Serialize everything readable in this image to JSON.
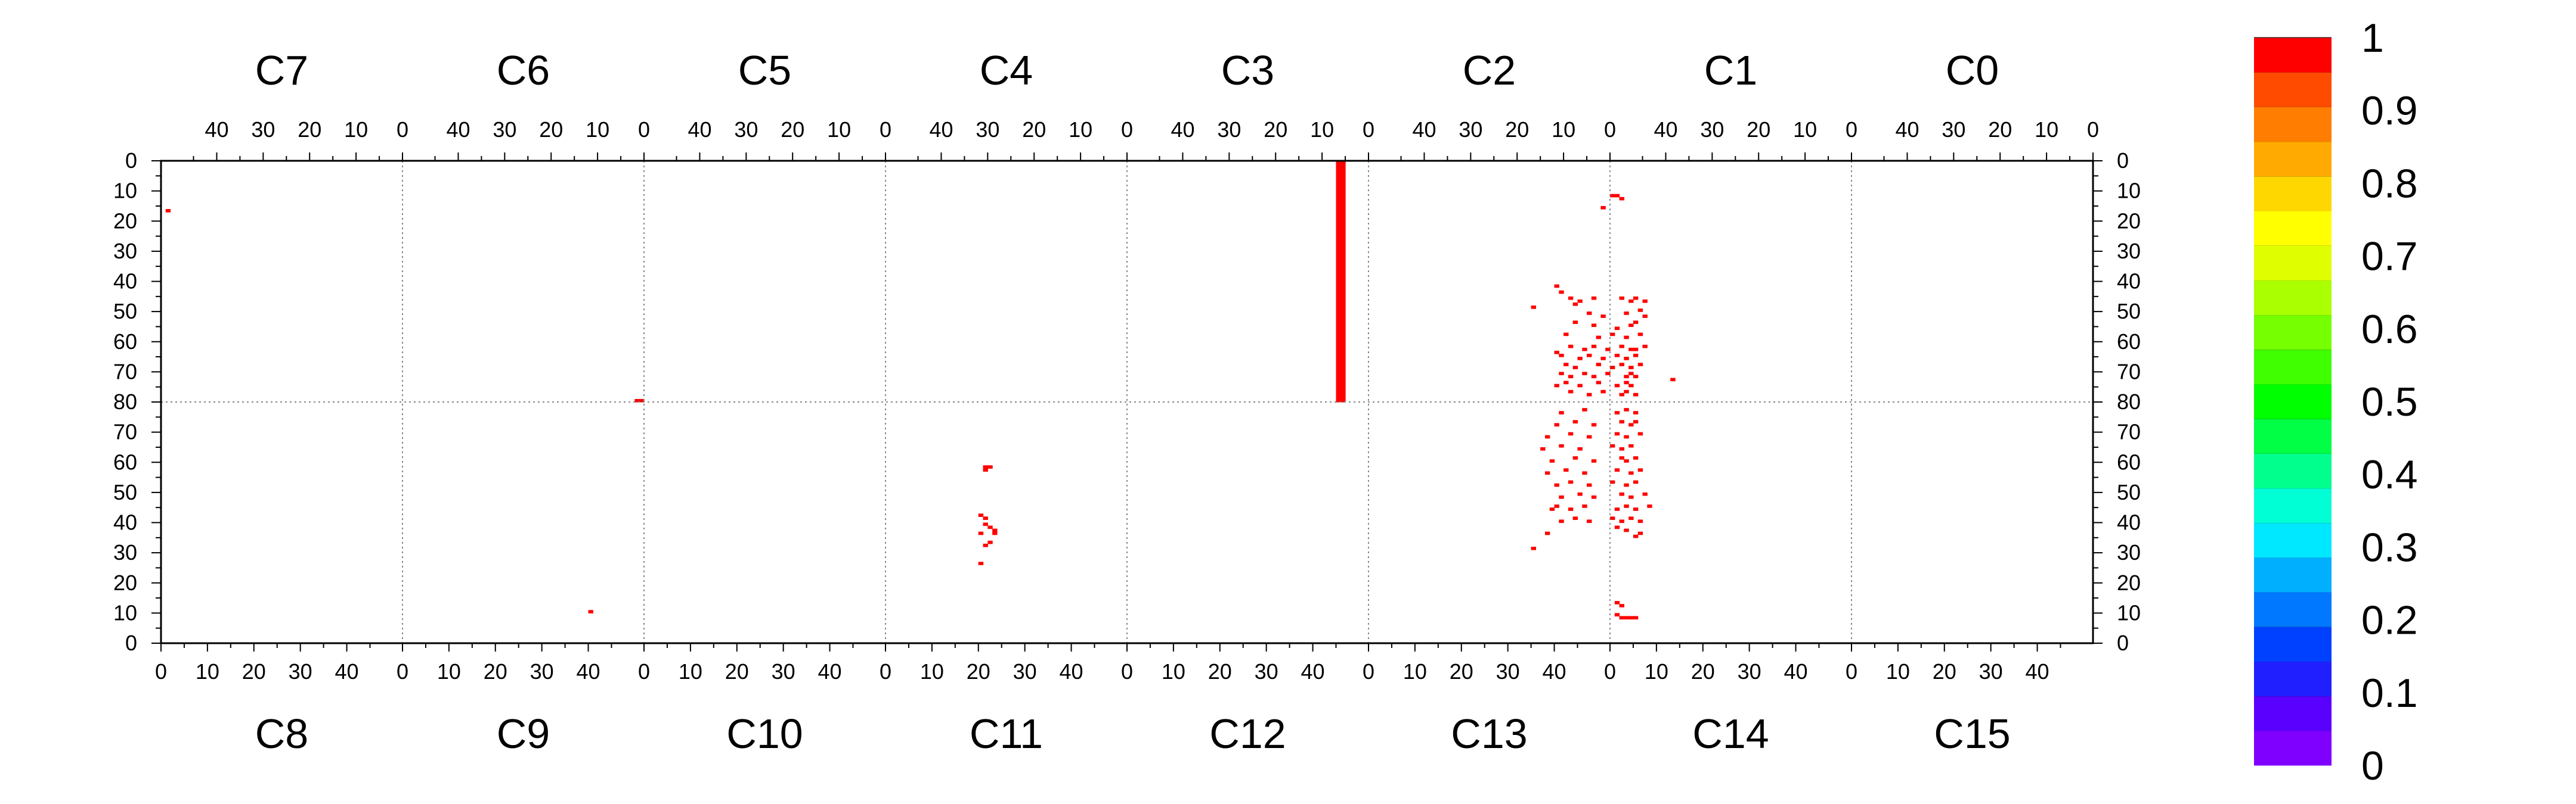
{
  "chart_data": {
    "type": "heatmap",
    "title": "",
    "xlabel": "",
    "ylabel": "",
    "top_chips": [
      "C7",
      "C6",
      "C5",
      "C4",
      "C3",
      "C2",
      "C1",
      "C0"
    ],
    "bottom_chips": [
      "C8",
      "C9",
      "C10",
      "C11",
      "C12",
      "C13",
      "C14",
      "C15"
    ],
    "top_x_tick_labels": [
      "40",
      "30",
      "20",
      "10",
      "0"
    ],
    "bottom_x_tick_labels": [
      "0",
      "10",
      "20",
      "30",
      "40"
    ],
    "columns_per_chip": 52,
    "rows_per_half": 80,
    "y_tick_labels_top_half": [
      "0",
      "10",
      "20",
      "30",
      "40",
      "50",
      "60",
      "70",
      "80"
    ],
    "y_tick_labels_bottom_half": [
      "70",
      "60",
      "50",
      "40",
      "30",
      "20",
      "10",
      "0"
    ],
    "colorbar": {
      "min": 0,
      "max": 1,
      "tick_labels": [
        "0",
        "0.1",
        "0.2",
        "0.3",
        "0.4",
        "0.5",
        "0.6",
        "0.7",
        "0.8",
        "0.9",
        "1"
      ],
      "colors": [
        "#7f00ff",
        "#5a00ff",
        "#1f1fff",
        "#0040ff",
        "#0078ff",
        "#00b0ff",
        "#00e8ff",
        "#00ffd5",
        "#00ff8c",
        "#00ff45",
        "#00ff00",
        "#40ff00",
        "#75ff00",
        "#aaff00",
        "#dfff00",
        "#ffff00",
        "#ffd700",
        "#ffaa00",
        "#ff7d00",
        "#ff4b00",
        "#ff0000"
      ]
    },
    "grid": "dotted chip boundaries and half separator",
    "hit_value": 1,
    "hit_color": "#ff0000",
    "hits": [
      {
        "chip": "C7",
        "half": "top",
        "col": 50,
        "row": 16
      },
      {
        "chip": "C6",
        "half": "top",
        "col": 0,
        "row": 79
      },
      {
        "chip": "C6",
        "half": "top",
        "col": 1,
        "row": 79
      },
      {
        "chip": "C3",
        "half": "top",
        "col": 5,
        "row": 0,
        "height": 80
      },
      {
        "chip": "C3",
        "half": "top",
        "col": 6,
        "row": 0,
        "height": 80
      },
      {
        "chip": "C2",
        "half": "top",
        "col": 1,
        "row": 15
      },
      {
        "chip": "C1",
        "half": "top",
        "col": 50,
        "row": 11
      },
      {
        "chip": "C1",
        "half": "top",
        "col": 51,
        "row": 11
      },
      {
        "chip": "C1",
        "half": "top",
        "col": 49,
        "row": 12
      },
      {
        "chip": "C2",
        "half": "top",
        "col": 16,
        "row": 48
      },
      {
        "chip": "C2",
        "half": "top",
        "col": 11,
        "row": 41
      },
      {
        "chip": "C2",
        "half": "top",
        "col": 10,
        "row": 43
      },
      {
        "chip": "C2",
        "half": "top",
        "col": 8,
        "row": 45
      },
      {
        "chip": "C2",
        "half": "top",
        "col": 7,
        "row": 47
      },
      {
        "chip": "C2",
        "half": "top",
        "col": 6,
        "row": 46
      },
      {
        "chip": "C2",
        "half": "top",
        "col": 3,
        "row": 45
      },
      {
        "chip": "C1",
        "half": "top",
        "col": 49,
        "row": 45
      },
      {
        "chip": "C1",
        "half": "top",
        "col": 47,
        "row": 46
      },
      {
        "chip": "C1",
        "half": "top",
        "col": 46,
        "row": 45
      },
      {
        "chip": "C1",
        "half": "top",
        "col": 44,
        "row": 46
      },
      {
        "chip": "C2",
        "half": "top",
        "col": 4,
        "row": 50
      },
      {
        "chip": "C2",
        "half": "top",
        "col": 1,
        "row": 51
      },
      {
        "chip": "C1",
        "half": "top",
        "col": 48,
        "row": 50
      },
      {
        "chip": "C1",
        "half": "top",
        "col": 45,
        "row": 49
      },
      {
        "chip": "C1",
        "half": "top",
        "col": 44,
        "row": 51
      },
      {
        "chip": "C2",
        "half": "top",
        "col": 7,
        "row": 53
      },
      {
        "chip": "C2",
        "half": "top",
        "col": 3,
        "row": 54
      },
      {
        "chip": "C1",
        "half": "top",
        "col": 50,
        "row": 55
      },
      {
        "chip": "C1",
        "half": "top",
        "col": 47,
        "row": 54
      },
      {
        "chip": "C1",
        "half": "top",
        "col": 46,
        "row": 53
      },
      {
        "chip": "C2",
        "half": "top",
        "col": 9,
        "row": 57
      },
      {
        "chip": "C2",
        "half": "top",
        "col": 2,
        "row": 58
      },
      {
        "chip": "C1",
        "half": "top",
        "col": 51,
        "row": 57
      },
      {
        "chip": "C1",
        "half": "top",
        "col": 48,
        "row": 58
      },
      {
        "chip": "C1",
        "half": "top",
        "col": 45,
        "row": 57
      },
      {
        "chip": "C2",
        "half": "top",
        "col": 8,
        "row": 61
      },
      {
        "chip": "C2",
        "half": "top",
        "col": 5,
        "row": 62
      },
      {
        "chip": "C2",
        "half": "top",
        "col": 3,
        "row": 61
      },
      {
        "chip": "C2",
        "half": "top",
        "col": 0,
        "row": 62
      },
      {
        "chip": "C1",
        "half": "top",
        "col": 49,
        "row": 61
      },
      {
        "chip": "C1",
        "half": "top",
        "col": 47,
        "row": 62
      },
      {
        "chip": "C1",
        "half": "top",
        "col": 46,
        "row": 62
      },
      {
        "chip": "C1",
        "half": "top",
        "col": 44,
        "row": 61
      },
      {
        "chip": "C2",
        "half": "top",
        "col": 11,
        "row": 63
      },
      {
        "chip": "C2",
        "half": "top",
        "col": 10,
        "row": 64
      },
      {
        "chip": "C2",
        "half": "top",
        "col": 6,
        "row": 65
      },
      {
        "chip": "C2",
        "half": "top",
        "col": 4,
        "row": 64
      },
      {
        "chip": "C2",
        "half": "top",
        "col": 1,
        "row": 65
      },
      {
        "chip": "C1",
        "half": "top",
        "col": 50,
        "row": 64
      },
      {
        "chip": "C1",
        "half": "top",
        "col": 48,
        "row": 65
      },
      {
        "chip": "C1",
        "half": "top",
        "col": 46,
        "row": 64
      },
      {
        "chip": "C2",
        "half": "top",
        "col": 9,
        "row": 67
      },
      {
        "chip": "C2",
        "half": "top",
        "col": 7,
        "row": 68
      },
      {
        "chip": "C2",
        "half": "top",
        "col": 2,
        "row": 67
      },
      {
        "chip": "C1",
        "half": "top",
        "col": 51,
        "row": 68
      },
      {
        "chip": "C1",
        "half": "top",
        "col": 49,
        "row": 67
      },
      {
        "chip": "C1",
        "half": "top",
        "col": 47,
        "row": 68
      },
      {
        "chip": "C1",
        "half": "top",
        "col": 45,
        "row": 67
      },
      {
        "chip": "C2",
        "half": "top",
        "col": 10,
        "row": 70
      },
      {
        "chip": "C2",
        "half": "top",
        "col": 8,
        "row": 71
      },
      {
        "chip": "C2",
        "half": "top",
        "col": 5,
        "row": 70
      },
      {
        "chip": "C2",
        "half": "top",
        "col": 3,
        "row": 71
      },
      {
        "chip": "C2",
        "half": "top",
        "col": 0,
        "row": 70
      },
      {
        "chip": "C1",
        "half": "top",
        "col": 48,
        "row": 71
      },
      {
        "chip": "C1",
        "half": "top",
        "col": 47,
        "row": 70
      },
      {
        "chip": "C1",
        "half": "top",
        "col": 46,
        "row": 71
      },
      {
        "chip": "C1",
        "half": "top",
        "col": 38,
        "row": 72
      },
      {
        "chip": "C2",
        "half": "top",
        "col": 11,
        "row": 74
      },
      {
        "chip": "C2",
        "half": "top",
        "col": 9,
        "row": 73
      },
      {
        "chip": "C2",
        "half": "top",
        "col": 6,
        "row": 74
      },
      {
        "chip": "C2",
        "half": "top",
        "col": 2,
        "row": 73
      },
      {
        "chip": "C1",
        "half": "top",
        "col": 50,
        "row": 74
      },
      {
        "chip": "C1",
        "half": "top",
        "col": 48,
        "row": 73
      },
      {
        "chip": "C1",
        "half": "top",
        "col": 47,
        "row": 74
      },
      {
        "chip": "C2",
        "half": "top",
        "col": 8,
        "row": 76
      },
      {
        "chip": "C2",
        "half": "top",
        "col": 4,
        "row": 77
      },
      {
        "chip": "C2",
        "half": "top",
        "col": 1,
        "row": 76
      },
      {
        "chip": "C1",
        "half": "top",
        "col": 49,
        "row": 77
      },
      {
        "chip": "C1",
        "half": "top",
        "col": 48,
        "row": 76
      },
      {
        "chip": "C1",
        "half": "top",
        "col": 46,
        "row": 77
      },
      {
        "chip": "C9",
        "half": "bottom",
        "col": 40,
        "row": 10
      },
      {
        "chip": "C11",
        "half": "bottom",
        "col": 21,
        "row": 57
      },
      {
        "chip": "C11",
        "half": "bottom",
        "col": 21,
        "row": 58
      },
      {
        "chip": "C11",
        "half": "bottom",
        "col": 22,
        "row": 58
      },
      {
        "chip": "C11",
        "half": "bottom",
        "col": 20,
        "row": 42
      },
      {
        "chip": "C11",
        "half": "bottom",
        "col": 21,
        "row": 41
      },
      {
        "chip": "C11",
        "half": "bottom",
        "col": 21,
        "row": 39
      },
      {
        "chip": "C11",
        "half": "bottom",
        "col": 22,
        "row": 38
      },
      {
        "chip": "C11",
        "half": "bottom",
        "col": 23,
        "row": 37
      },
      {
        "chip": "C11",
        "half": "bottom",
        "col": 23,
        "row": 36
      },
      {
        "chip": "C11",
        "half": "bottom",
        "col": 20,
        "row": 36
      },
      {
        "chip": "C11",
        "half": "bottom",
        "col": 22,
        "row": 33
      },
      {
        "chip": "C11",
        "half": "bottom",
        "col": 21,
        "row": 32
      },
      {
        "chip": "C11",
        "half": "bottom",
        "col": 20,
        "row": 26
      },
      {
        "chip": "C13",
        "half": "bottom",
        "col": 38,
        "row": 36
      },
      {
        "chip": "C13",
        "half": "bottom",
        "col": 35,
        "row": 31
      },
      {
        "chip": "C14",
        "half": "bottom",
        "col": 1,
        "row": 13
      },
      {
        "chip": "C14",
        "half": "bottom",
        "col": 2,
        "row": 12
      },
      {
        "chip": "C14",
        "half": "bottom",
        "col": 2,
        "row": 8
      },
      {
        "chip": "C14",
        "half": "bottom",
        "col": 3,
        "row": 8
      },
      {
        "chip": "C14",
        "half": "bottom",
        "col": 4,
        "row": 8
      },
      {
        "chip": "C14",
        "half": "bottom",
        "col": 5,
        "row": 8
      },
      {
        "chip": "C14",
        "half": "bottom",
        "col": 1,
        "row": 9
      },
      {
        "chip": "C14",
        "half": "bottom",
        "col": 6,
        "row": 36
      },
      {
        "chip": "C14",
        "half": "bottom",
        "col": 5,
        "row": 35
      },
      {
        "chip": "C14",
        "half": "bottom",
        "col": 3,
        "row": 37
      },
      {
        "chip": "C14",
        "half": "bottom",
        "col": 1,
        "row": 38
      },
      {
        "chip": "C13",
        "half": "bottom",
        "col": 41,
        "row": 40
      },
      {
        "chip": "C13",
        "half": "bottom",
        "col": 44,
        "row": 41
      },
      {
        "chip": "C13",
        "half": "bottom",
        "col": 47,
        "row": 40
      },
      {
        "chip": "C14",
        "half": "bottom",
        "col": 0,
        "row": 41
      },
      {
        "chip": "C14",
        "half": "bottom",
        "col": 2,
        "row": 40
      },
      {
        "chip": "C14",
        "half": "bottom",
        "col": 4,
        "row": 41
      },
      {
        "chip": "C14",
        "half": "bottom",
        "col": 6,
        "row": 40
      },
      {
        "chip": "C13",
        "half": "bottom",
        "col": 39,
        "row": 44
      },
      {
        "chip": "C13",
        "half": "bottom",
        "col": 40,
        "row": 45
      },
      {
        "chip": "C13",
        "half": "bottom",
        "col": 43,
        "row": 44
      },
      {
        "chip": "C13",
        "half": "bottom",
        "col": 46,
        "row": 45
      },
      {
        "chip": "C14",
        "half": "bottom",
        "col": 1,
        "row": 44
      },
      {
        "chip": "C14",
        "half": "bottom",
        "col": 3,
        "row": 45
      },
      {
        "chip": "C14",
        "half": "bottom",
        "col": 5,
        "row": 44
      },
      {
        "chip": "C14",
        "half": "bottom",
        "col": 8,
        "row": 45
      },
      {
        "chip": "C13",
        "half": "bottom",
        "col": 41,
        "row": 48
      },
      {
        "chip": "C13",
        "half": "bottom",
        "col": 45,
        "row": 49
      },
      {
        "chip": "C13",
        "half": "bottom",
        "col": 48,
        "row": 48
      },
      {
        "chip": "C14",
        "half": "bottom",
        "col": 2,
        "row": 49
      },
      {
        "chip": "C14",
        "half": "bottom",
        "col": 4,
        "row": 48
      },
      {
        "chip": "C14",
        "half": "bottom",
        "col": 7,
        "row": 49
      },
      {
        "chip": "C13",
        "half": "bottom",
        "col": 40,
        "row": 52
      },
      {
        "chip": "C13",
        "half": "bottom",
        "col": 43,
        "row": 53
      },
      {
        "chip": "C13",
        "half": "bottom",
        "col": 47,
        "row": 52
      },
      {
        "chip": "C14",
        "half": "bottom",
        "col": 0,
        "row": 53
      },
      {
        "chip": "C14",
        "half": "bottom",
        "col": 3,
        "row": 52
      },
      {
        "chip": "C14",
        "half": "bottom",
        "col": 5,
        "row": 53
      },
      {
        "chip": "C13",
        "half": "bottom",
        "col": 38,
        "row": 56
      },
      {
        "chip": "C13",
        "half": "bottom",
        "col": 42,
        "row": 57
      },
      {
        "chip": "C13",
        "half": "bottom",
        "col": 46,
        "row": 56
      },
      {
        "chip": "C14",
        "half": "bottom",
        "col": 1,
        "row": 57
      },
      {
        "chip": "C14",
        "half": "bottom",
        "col": 4,
        "row": 56
      },
      {
        "chip": "C14",
        "half": "bottom",
        "col": 6,
        "row": 57
      },
      {
        "chip": "C13",
        "half": "bottom",
        "col": 39,
        "row": 60
      },
      {
        "chip": "C13",
        "half": "bottom",
        "col": 44,
        "row": 61
      },
      {
        "chip": "C13",
        "half": "bottom",
        "col": 48,
        "row": 60
      },
      {
        "chip": "C14",
        "half": "bottom",
        "col": 2,
        "row": 61
      },
      {
        "chip": "C14",
        "half": "bottom",
        "col": 3,
        "row": 60
      },
      {
        "chip": "C14",
        "half": "bottom",
        "col": 5,
        "row": 61
      },
      {
        "chip": "C13",
        "half": "bottom",
        "col": 37,
        "row": 64
      },
      {
        "chip": "C13",
        "half": "bottom",
        "col": 41,
        "row": 65
      },
      {
        "chip": "C13",
        "half": "bottom",
        "col": 45,
        "row": 64
      },
      {
        "chip": "C14",
        "half": "bottom",
        "col": 0,
        "row": 65
      },
      {
        "chip": "C14",
        "half": "bottom",
        "col": 2,
        "row": 64
      },
      {
        "chip": "C14",
        "half": "bottom",
        "col": 4,
        "row": 65
      },
      {
        "chip": "C13",
        "half": "bottom",
        "col": 38,
        "row": 68
      },
      {
        "chip": "C13",
        "half": "bottom",
        "col": 43,
        "row": 69
      },
      {
        "chip": "C13",
        "half": "bottom",
        "col": 47,
        "row": 68
      },
      {
        "chip": "C14",
        "half": "bottom",
        "col": 1,
        "row": 69
      },
      {
        "chip": "C14",
        "half": "bottom",
        "col": 3,
        "row": 68
      },
      {
        "chip": "C14",
        "half": "bottom",
        "col": 6,
        "row": 69
      },
      {
        "chip": "C13",
        "half": "bottom",
        "col": 40,
        "row": 72
      },
      {
        "chip": "C13",
        "half": "bottom",
        "col": 44,
        "row": 73
      },
      {
        "chip": "C13",
        "half": "bottom",
        "col": 48,
        "row": 72
      },
      {
        "chip": "C14",
        "half": "bottom",
        "col": 2,
        "row": 73
      },
      {
        "chip": "C14",
        "half": "bottom",
        "col": 4,
        "row": 72
      },
      {
        "chip": "C14",
        "half": "bottom",
        "col": 5,
        "row": 73
      },
      {
        "chip": "C13",
        "half": "bottom",
        "col": 41,
        "row": 76
      },
      {
        "chip": "C13",
        "half": "bottom",
        "col": 46,
        "row": 77
      },
      {
        "chip": "C14",
        "half": "bottom",
        "col": 1,
        "row": 76
      },
      {
        "chip": "C14",
        "half": "bottom",
        "col": 3,
        "row": 77
      },
      {
        "chip": "C14",
        "half": "bottom",
        "col": 5,
        "row": 76
      }
    ]
  }
}
